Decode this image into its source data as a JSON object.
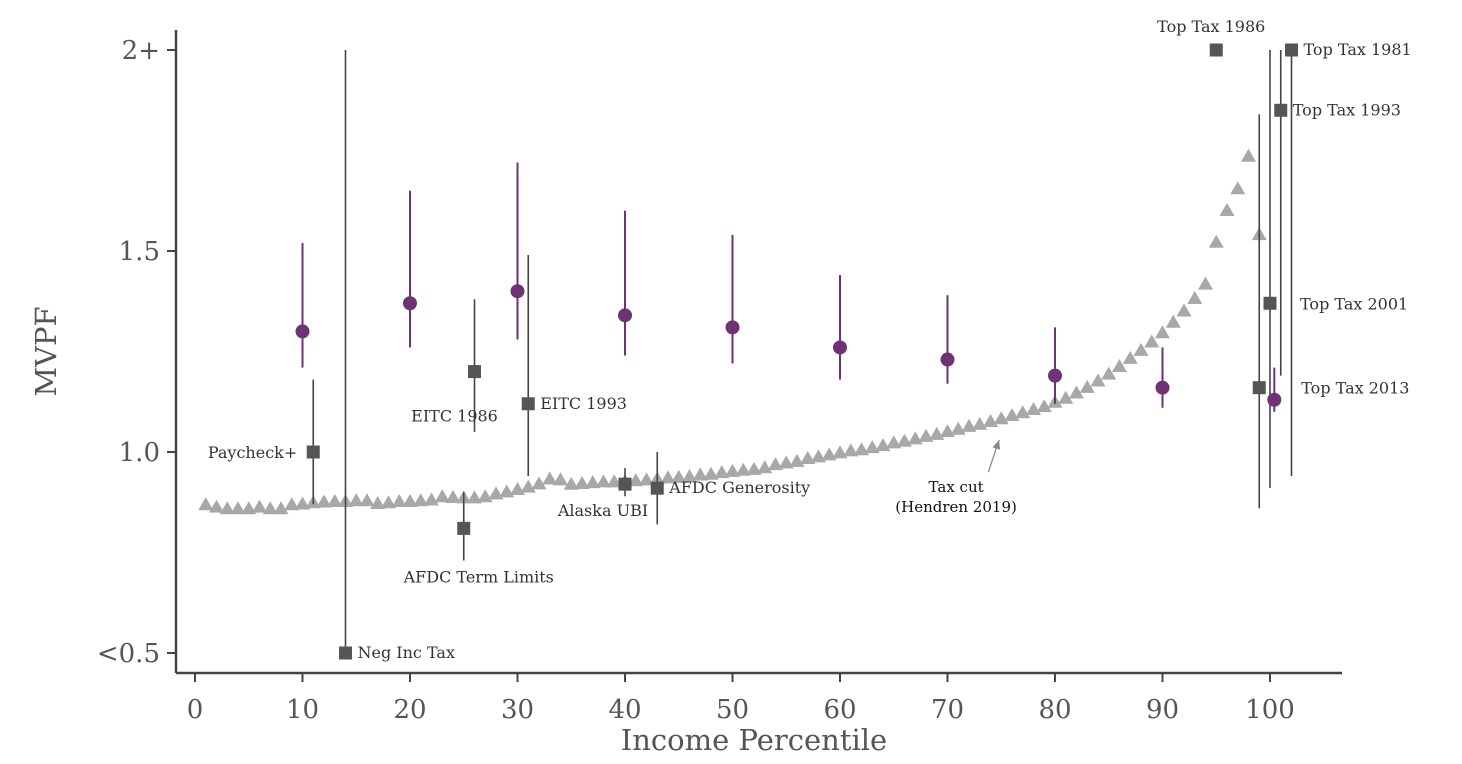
{
  "chart_data": {
    "type": "scatter",
    "xlabel": "Income Percentile",
    "ylabel": "MVPF",
    "xlim": [
      -2,
      107
    ],
    "ylim": [
      0.5,
      2.0
    ],
    "xticks": [
      "0",
      "10",
      "20",
      "30",
      "40",
      "50",
      "60",
      "70",
      "80",
      "90",
      "100"
    ],
    "yticks": [
      {
        "value": 0.5,
        "label": "<0.5"
      },
      {
        "value": 1.0,
        "label": "1.0"
      },
      {
        "value": 1.5,
        "label": "1.5"
      },
      {
        "value": 2.0,
        "label": "2+"
      }
    ],
    "grid": false,
    "colors": {
      "purple": "#6f3276",
      "square": "#555555",
      "triangle": "#a8a8a8",
      "axis": "#444444"
    },
    "circles": [
      {
        "x": 10,
        "y": 1.3,
        "lo": 1.21,
        "hi": 1.52
      },
      {
        "x": 20,
        "y": 1.37,
        "lo": 1.26,
        "hi": 1.65
      },
      {
        "x": 30,
        "y": 1.4,
        "lo": 1.28,
        "hi": 1.72
      },
      {
        "x": 40,
        "y": 1.34,
        "lo": 1.24,
        "hi": 1.6
      },
      {
        "x": 50,
        "y": 1.31,
        "lo": 1.22,
        "hi": 1.54
      },
      {
        "x": 60,
        "y": 1.26,
        "lo": 1.18,
        "hi": 1.44
      },
      {
        "x": 70,
        "y": 1.23,
        "lo": 1.17,
        "hi": 1.39
      },
      {
        "x": 80,
        "y": 1.19,
        "lo": 1.12,
        "hi": 1.31
      },
      {
        "x": 90,
        "y": 1.16,
        "lo": 1.11,
        "hi": 1.26
      },
      {
        "x": 100.4,
        "y": 1.13,
        "lo": 1.1,
        "hi": 1.21
      }
    ],
    "squares": [
      {
        "label": "Paycheck+",
        "x": 11,
        "y": 1.0,
        "lo": 0.87,
        "hi": 1.18,
        "anchor": "left"
      },
      {
        "label": "Neg Inc Tax",
        "x": 14,
        "y": 0.5,
        "lo": 0.5,
        "hi": 2.0,
        "anchor": "right"
      },
      {
        "label": "AFDC Term Limits",
        "x": 25,
        "y": 0.81,
        "lo": 0.73,
        "hi": 0.9,
        "anchor": "below"
      },
      {
        "label": "EITC 1986",
        "x": 26,
        "y": 1.2,
        "lo": 1.05,
        "hi": 1.38,
        "anchor": "below-left"
      },
      {
        "label": "EITC 1993",
        "x": 31,
        "y": 1.12,
        "lo": 0.94,
        "hi": 1.49,
        "anchor": "right"
      },
      {
        "label": "Alaska UBI",
        "x": 40,
        "y": 0.92,
        "lo": 0.89,
        "hi": 0.96,
        "anchor": "below-left"
      },
      {
        "label": "AFDC Generosity",
        "x": 43,
        "y": 0.91,
        "lo": 0.82,
        "hi": 1.0,
        "anchor": "right"
      },
      {
        "label": "Top Tax 1986",
        "x": 95,
        "y": 2.0,
        "lo": null,
        "hi": null,
        "anchor": "above"
      },
      {
        "label": "Top Tax 2013",
        "x": 99,
        "y": 1.16,
        "lo": 0.86,
        "hi": 1.84,
        "anchor": "far-right"
      },
      {
        "label": "Top Tax 2001",
        "x": 100,
        "y": 1.37,
        "lo": 0.91,
        "hi": 2.0,
        "anchor": "far-right"
      },
      {
        "label": "Top Tax 1993",
        "x": 101,
        "y": 1.85,
        "lo": 1.19,
        "hi": 2.0,
        "anchor": "right"
      },
      {
        "label": "Top Tax 1981",
        "x": 102,
        "y": 2.0,
        "lo": 0.94,
        "hi": 2.0,
        "anchor": "right"
      }
    ],
    "triangles": {
      "x": [
        1,
        2,
        3,
        4,
        5,
        6,
        7,
        8,
        9,
        10,
        11,
        12,
        13,
        14,
        15,
        16,
        17,
        18,
        19,
        20,
        21,
        22,
        23,
        24,
        25,
        26,
        27,
        28,
        29,
        30,
        31,
        32,
        33,
        34,
        35,
        36,
        37,
        38,
        39,
        40,
        41,
        42,
        43,
        44,
        45,
        46,
        47,
        48,
        49,
        50,
        51,
        52,
        53,
        54,
        55,
        56,
        57,
        58,
        59,
        60,
        61,
        62,
        63,
        64,
        65,
        66,
        67,
        68,
        69,
        70,
        71,
        72,
        73,
        74,
        75,
        76,
        77,
        78,
        79,
        80,
        81,
        82,
        83,
        84,
        85,
        86,
        87,
        88,
        89,
        90,
        91,
        92,
        93,
        94,
        95,
        96,
        97,
        98,
        99
      ],
      "y": [
        0.868,
        0.862,
        0.858,
        0.858,
        0.858,
        0.862,
        0.858,
        0.858,
        0.868,
        0.87,
        0.873,
        0.875,
        0.876,
        0.876,
        0.878,
        0.878,
        0.871,
        0.873,
        0.876,
        0.876,
        0.878,
        0.88,
        0.888,
        0.886,
        0.885,
        0.885,
        0.888,
        0.895,
        0.9,
        0.906,
        0.912,
        0.92,
        0.932,
        0.93,
        0.919,
        0.921,
        0.923,
        0.925,
        0.925,
        0.926,
        0.928,
        0.93,
        0.932,
        0.935,
        0.936,
        0.938,
        0.942,
        0.944,
        0.948,
        0.951,
        0.954,
        0.956,
        0.96,
        0.968,
        0.972,
        0.976,
        0.983,
        0.987,
        0.992,
        0.997,
        1.002,
        1.005,
        1.01,
        1.015,
        1.022,
        1.026,
        1.032,
        1.038,
        1.043,
        1.05,
        1.056,
        1.063,
        1.068,
        1.075,
        1.082,
        1.09,
        1.097,
        1.105,
        1.112,
        1.123,
        1.133,
        1.146,
        1.16,
        1.176,
        1.193,
        1.212,
        1.232,
        1.252,
        1.273,
        1.296,
        1.322,
        1.35,
        1.381,
        1.417,
        1.521,
        1.6,
        1.654,
        1.735,
        1.54
      ]
    },
    "annotations": [
      {
        "line1": "Tax cut",
        "line2": "(Hendren 2019)"
      }
    ]
  }
}
